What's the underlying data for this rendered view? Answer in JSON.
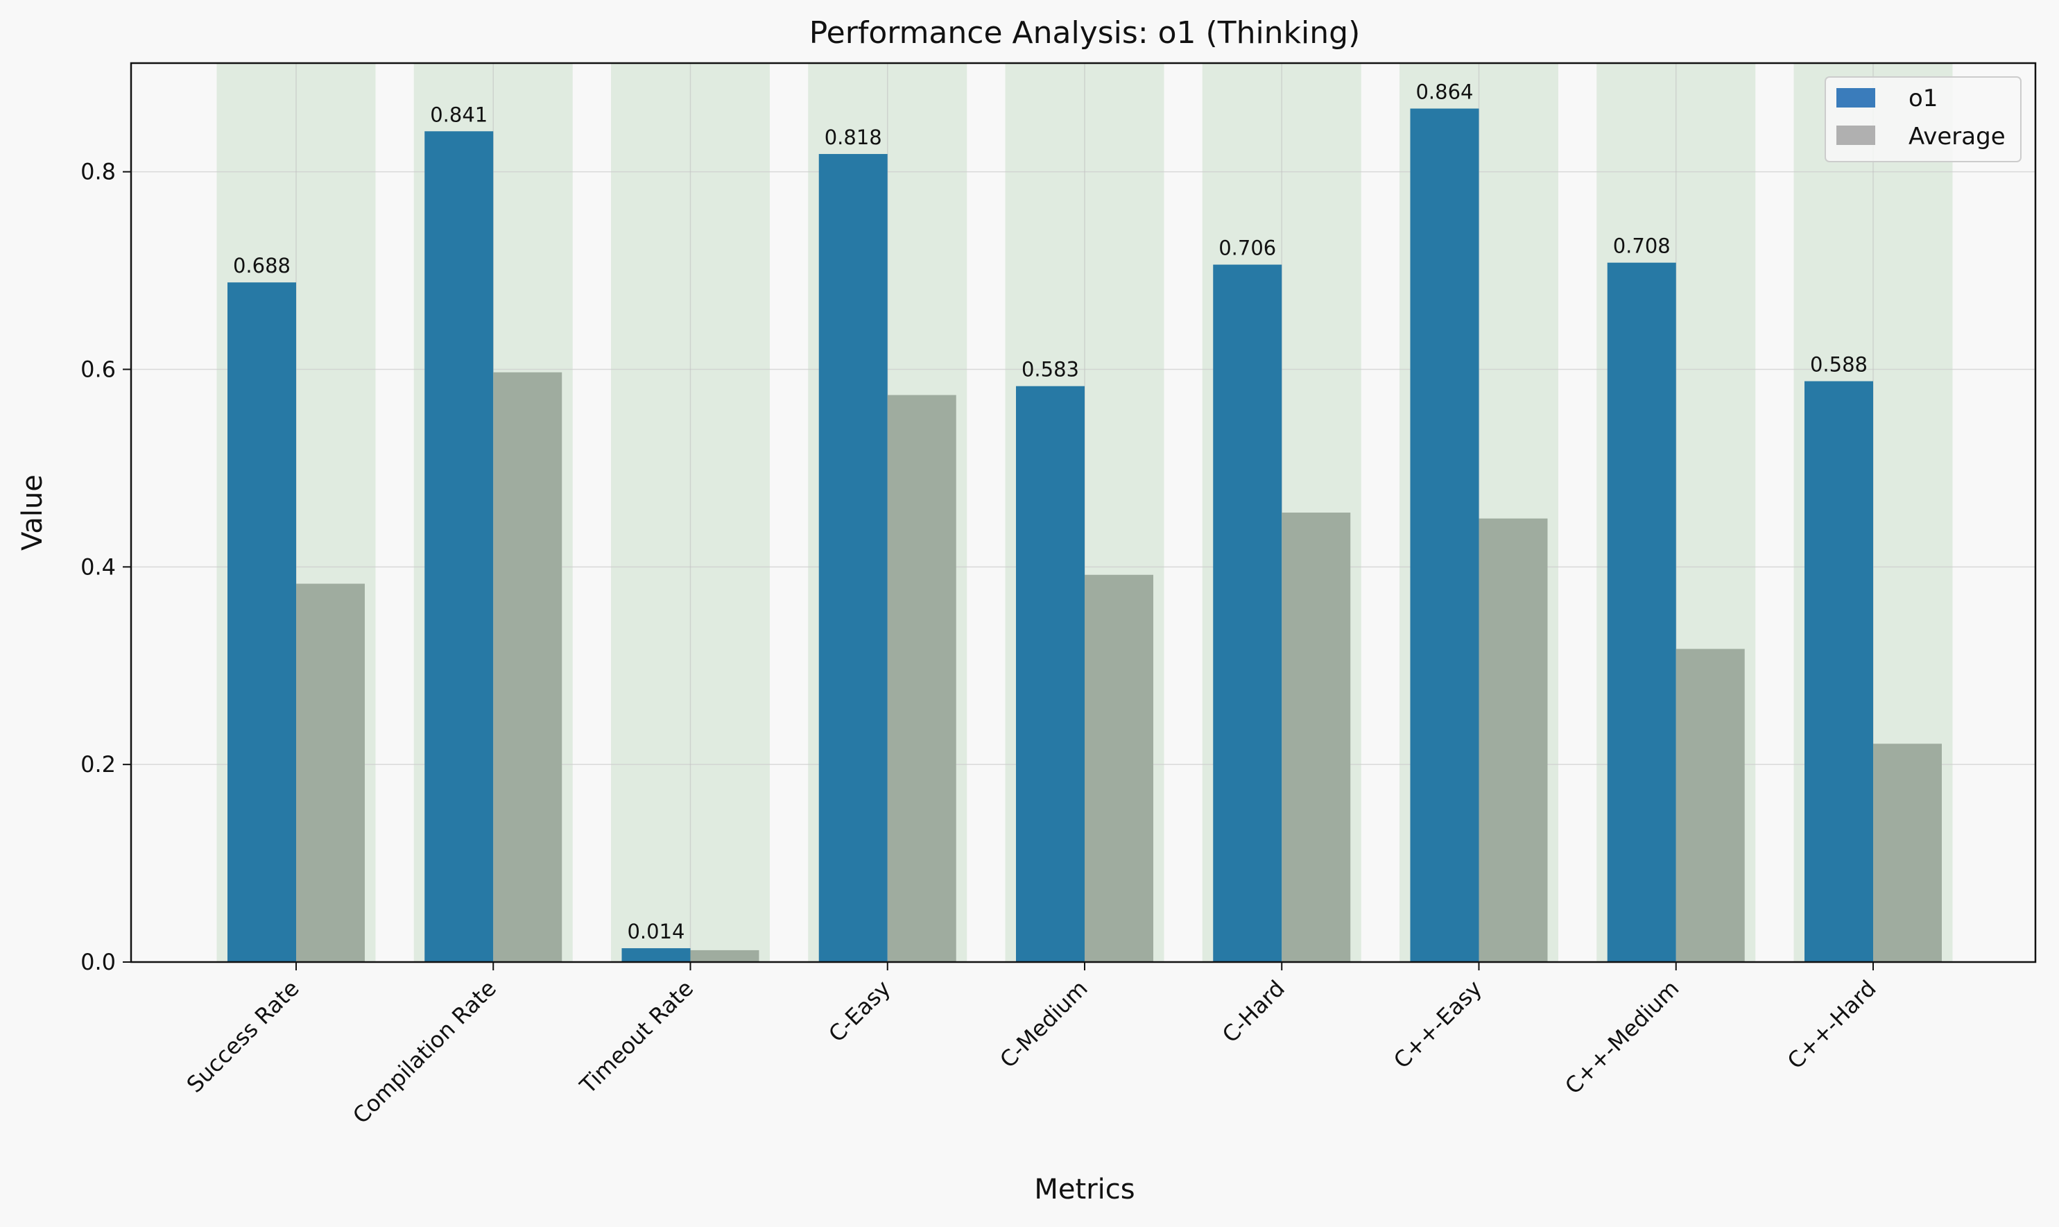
{
  "chart_data": {
    "type": "bar",
    "title": "Performance Analysis: o1 (Thinking)",
    "xlabel": "Metrics",
    "ylabel": "Value",
    "categories": [
      "Success Rate",
      "Compilation Rate",
      "Timeout Rate",
      "C-Easy",
      "C-Medium",
      "C-Hard",
      "C++-Easy",
      "C++-Medium",
      "C++-Hard"
    ],
    "series": [
      {
        "name": "o1",
        "values": [
          0.688,
          0.841,
          0.014,
          0.818,
          0.583,
          0.706,
          0.864,
          0.708,
          0.588
        ],
        "color": "#2779a5",
        "show_labels": true
      },
      {
        "name": "Average",
        "values": [
          0.383,
          0.597,
          0.012,
          0.574,
          0.392,
          0.455,
          0.449,
          0.317,
          0.221
        ],
        "color": "#9fac9f",
        "show_labels": false
      }
    ],
    "highlight_color": "#e0ebe0",
    "legend_swatch_colors": [
      "#3a7cbb",
      "#b0b0b0"
    ],
    "ylim": [
      0,
      0.91
    ],
    "yticks": [
      0.0,
      0.2,
      0.4,
      0.6,
      0.8
    ],
    "grid": true,
    "legend_position": "top-right"
  }
}
